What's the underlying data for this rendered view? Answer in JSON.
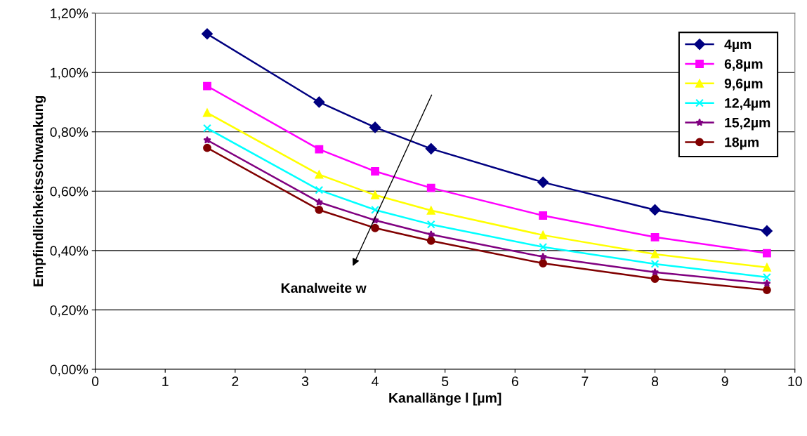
{
  "chart_data": {
    "type": "line",
    "xlabel": "Kanallänge l [µm]",
    "ylabel": "Empfindlichkeitsschwankung",
    "x": [
      1.6,
      3.2,
      4,
      4.8,
      6.4,
      8,
      9.6
    ],
    "series": [
      {
        "name": "4µm",
        "color": "#000080",
        "marker": "diamond",
        "values": [
          1.13,
          0.9,
          0.815,
          0.743,
          0.63,
          0.537,
          0.466
        ]
      },
      {
        "name": "6,8µm",
        "color": "#ff00ff",
        "marker": "square",
        "values": [
          0.954,
          0.741,
          0.667,
          0.611,
          0.518,
          0.445,
          0.391
        ]
      },
      {
        "name": "9,6µm",
        "color": "#ffff00",
        "marker": "triangle",
        "values": [
          0.864,
          0.656,
          0.587,
          0.535,
          0.452,
          0.388,
          0.343
        ]
      },
      {
        "name": "12,4µm",
        "color": "#00ffff",
        "marker": "cross",
        "values": [
          0.812,
          0.604,
          0.537,
          0.488,
          0.412,
          0.355,
          0.31
        ]
      },
      {
        "name": "15,2µm",
        "color": "#800080",
        "marker": "star",
        "values": [
          0.772,
          0.563,
          0.502,
          0.454,
          0.379,
          0.327,
          0.289
        ]
      },
      {
        "name": "18µm",
        "color": "#800000",
        "marker": "circle",
        "values": [
          0.746,
          0.537,
          0.476,
          0.433,
          0.357,
          0.305,
          0.267
        ]
      }
    ],
    "xlim": [
      0,
      10
    ],
    "xticks": [
      0,
      1,
      2,
      3,
      4,
      5,
      6,
      7,
      8,
      9,
      10
    ],
    "ylim": [
      0,
      1.2
    ],
    "yticks": [
      {
        "value": 0,
        "label": "0,00%"
      },
      {
        "value": 0.2,
        "label": "0,20%"
      },
      {
        "value": 0.4,
        "label": "0,40%"
      },
      {
        "value": 0.6,
        "label": "0,60%"
      },
      {
        "value": 0.8,
        "label": "0,80%"
      },
      {
        "value": 1.0,
        "label": "1,00%"
      },
      {
        "value": 1.2,
        "label": "1,20%"
      }
    ],
    "grid": "y",
    "legend": "top right",
    "line_style": "solid",
    "annotations": [
      "Kanalweite w"
    ]
  }
}
